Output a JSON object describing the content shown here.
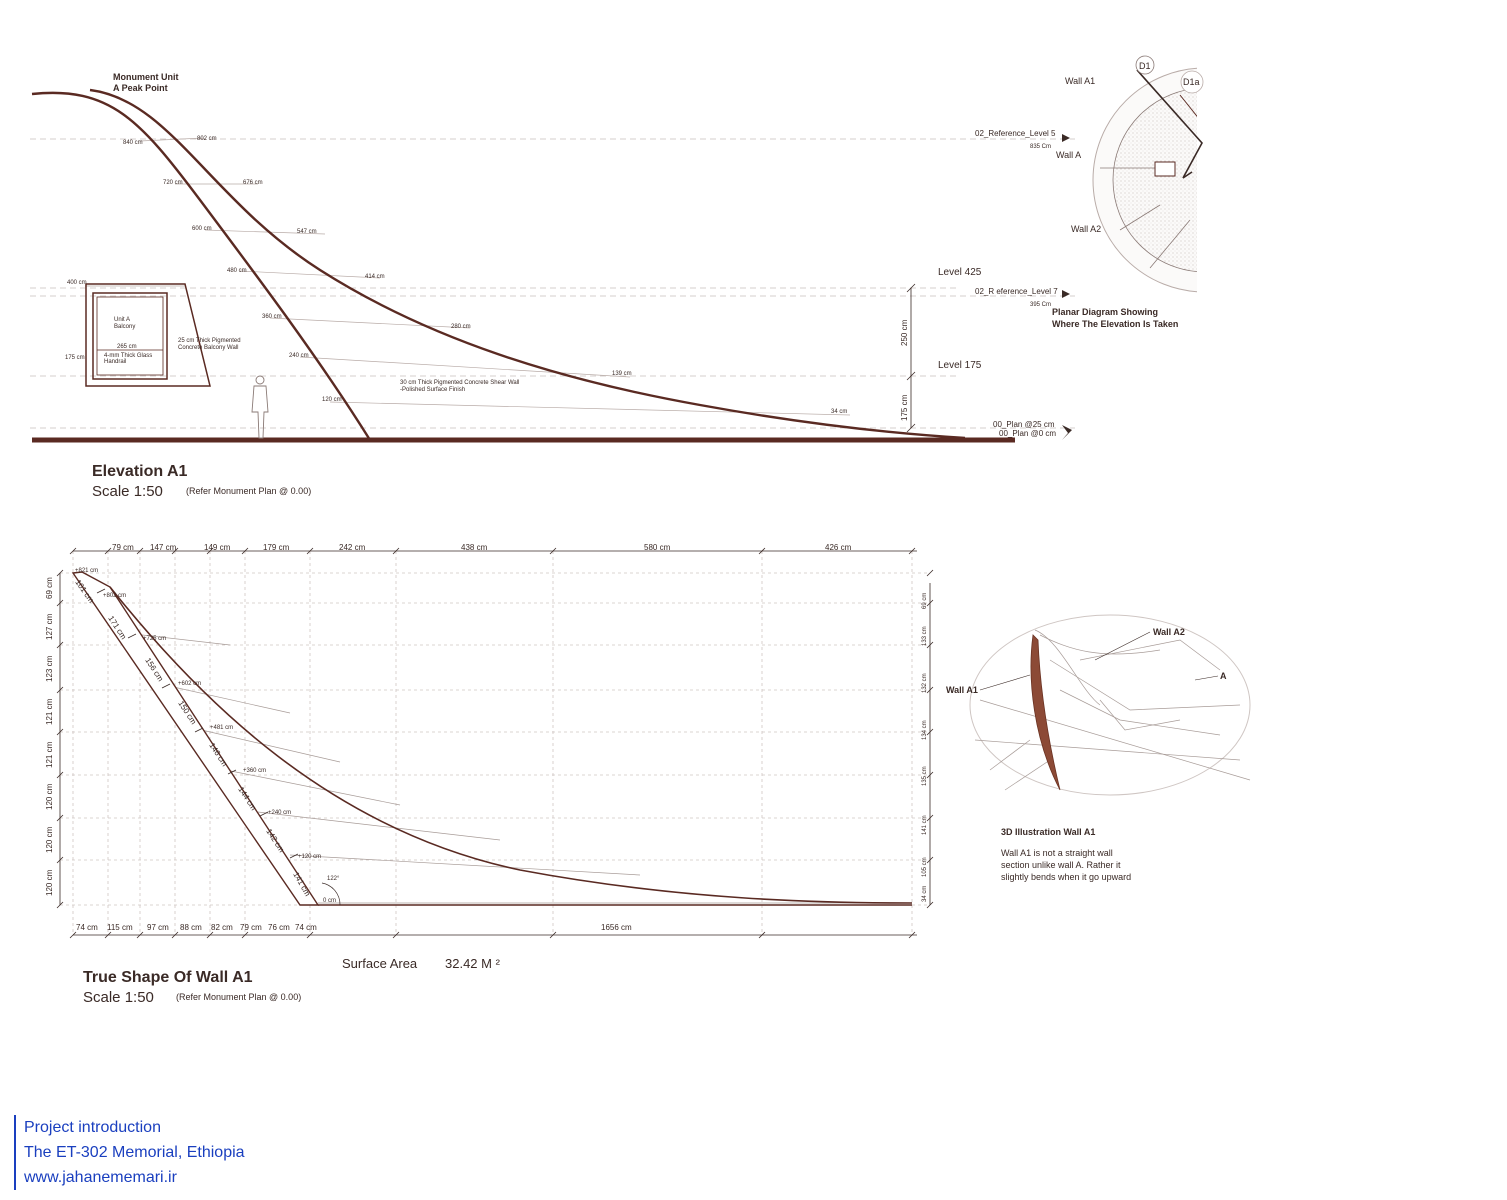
{
  "elevation": {
    "peak_label_1": "Monument Unit",
    "peak_label_2": "A Peak Point",
    "title": "Elevation A1",
    "scale": "Scale 1:50",
    "scale_note": "(Refer Monument Plan @ 0.00)",
    "balcony_label_1": "Unit A",
    "balcony_label_2": "Balcony",
    "balcony_wall_1": "25 cm Thick Pigmented",
    "balcony_wall_2": "Concrete Balcony Wall",
    "handrail_1": "4-mm Thick Glass",
    "handrail_2": "Handrail",
    "shear_wall_1": "30 cm Thick Pigmented Concrete Shear Wall",
    "shear_wall_2": "-Polished Surface Finish",
    "level_425": "Level 425",
    "level_175": "Level 175",
    "dim_250": "250 cm",
    "dim_175": "175 cm",
    "ref_level5": "02_Reference_Level 5",
    "ref_level5_val": "835 Cm",
    "ref_level7": "02_R eference_Level 7",
    "ref_level7_val": "395 Cm",
    "plan_25": "00_Plan @25 cm",
    "plan_0": "00_Plan @0 cm",
    "dims": {
      "d840": "840 cm",
      "d802": "802 cm",
      "d720": "720 cm",
      "d676": "676 cm",
      "d600": "600 cm",
      "d547": "547 cm",
      "d480": "480 cm",
      "d414": "414 cm",
      "d400": "400 cm",
      "d360": "360 cm",
      "d280": "280 cm",
      "d265": "265 cm",
      "d240": "240 cm",
      "d175": "175 cm",
      "d139": "139 cm",
      "d120": "120 cm",
      "d34": "34 cm"
    }
  },
  "planar": {
    "wall_a1": "Wall A1",
    "wall_a": "Wall A",
    "wall_a2": "Wall A2",
    "d1": "D1",
    "d1a": "D1a",
    "caption_1": "Planar Diagram Showing",
    "caption_2": "Where The Elevation Is Taken"
  },
  "true_shape": {
    "title": "True Shape Of Wall A1",
    "scale": "Scale 1:50",
    "scale_note": "(Refer Monument Plan @ 0.00)",
    "surface_label": "Surface Area",
    "surface_value": "32.42 M ²",
    "top_dims": [
      "79 cm",
      "147 cm",
      "149 cm",
      "179 cm",
      "242 cm",
      "438 cm",
      "580 cm",
      "426 cm"
    ],
    "bottom_dims": [
      "74 cm",
      "115 cm",
      "97 cm",
      "88 cm",
      "82 cm",
      "79 cm",
      "76 cm",
      "74 cm",
      "1656 cm"
    ],
    "left_dims": [
      "69 cm",
      "127 cm",
      "123 cm",
      "121 cm",
      "121 cm",
      "120 cm",
      "120 cm",
      "120 cm"
    ],
    "right_dims": [
      "69 cm",
      "133 cm",
      "132 cm",
      "134 cm",
      "135 cm",
      "141 cm",
      "105 cm",
      "34 cm"
    ],
    "edge_dims": [
      "101 cm",
      "171 cm",
      "156 cm",
      "150 cm",
      "146 cm",
      "144 cm",
      "142 cm",
      "141 cm"
    ],
    "heights": [
      "+821 cm",
      "+802 cm",
      "+725 cm",
      "+602 cm",
      "+481 cm",
      "+360 cm",
      "+240 cm",
      "+120 cm"
    ],
    "angle": "122°",
    "zero": "0 cm"
  },
  "illustration": {
    "wall_a2": "Wall A2",
    "wall_a1": "Wall A1",
    "a": "A",
    "title": "3D Illustration Wall A1",
    "desc_1": "Wall A1 is not a straight wall",
    "desc_2": "section unlike wall A. Rather it",
    "desc_3": "slightly bends when it go upward"
  },
  "credit": {
    "line1": "Project introduction",
    "line2": "The ET-302 Memorial, Ethiopia",
    "line3": "www.jahanememari.ir"
  }
}
